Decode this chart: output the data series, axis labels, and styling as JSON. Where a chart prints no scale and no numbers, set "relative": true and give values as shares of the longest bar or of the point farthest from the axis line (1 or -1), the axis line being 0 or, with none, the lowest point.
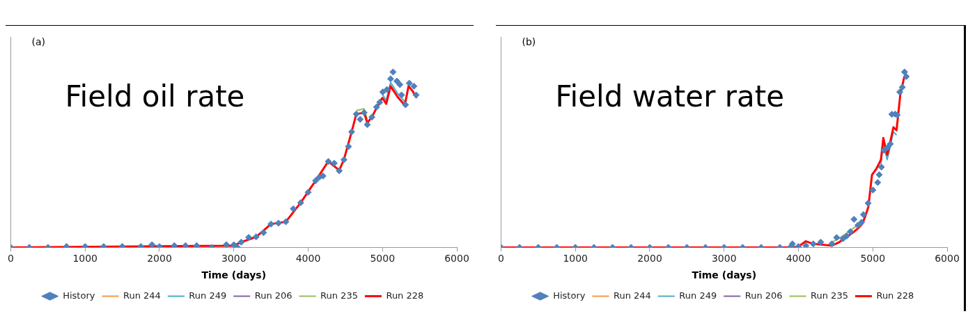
{
  "chart_data": [
    {
      "type": "line",
      "relative": true,
      "xlabel": "Time (days)",
      "annotations": [
        "(a)",
        "Field oil rate"
      ],
      "xlim": [
        0,
        6000
      ],
      "xticks": [
        0,
        1000,
        2000,
        3000,
        4000,
        5000,
        6000
      ],
      "grid": false,
      "legend": "bottom",
      "line_style": "solid",
      "series": [
        {
          "name": "History",
          "type": "scatter",
          "marker": "diamond",
          "color": "#4f81bd",
          "x": [
            0,
            250,
            500,
            750,
            1000,
            1250,
            1500,
            1750,
            1900,
            2000,
            2200,
            2350,
            2500,
            2700,
            2900,
            3000,
            3050,
            3100,
            3200,
            3300,
            3400,
            3500,
            3600,
            3700,
            3800,
            3900,
            4000,
            4100,
            4150,
            4200,
            4271,
            4350,
            4418,
            4481,
            4543,
            4585,
            4648,
            4700,
            4753,
            4795,
            4858,
            4920,
            4962,
            5004,
            5060,
            5109,
            5142,
            5193,
            5234,
            5256,
            5310,
            5360,
            5423,
            5452
          ],
          "values": [
            0,
            0,
            0,
            0.005,
            0.005,
            0.005,
            0.005,
            0.005,
            0.015,
            0.005,
            0.01,
            0.01,
            0.01,
            0,
            0.015,
            0.015,
            0,
            0.03,
            0.057,
            0.06,
            0.084,
            0.133,
            0.138,
            0.146,
            0.22,
            0.255,
            0.314,
            0.38,
            0.4,
            0.407,
            0.49,
            0.48,
            0.437,
            0.5,
            0.575,
            0.659,
            0.76,
            0.73,
            0.768,
            0.7,
            0.743,
            0.8,
            0.827,
            0.886,
            0.9,
            0.961,
            1,
            0.948,
            0.928,
            0.869,
            0.813,
            0.936,
            0.919,
            0.869
          ]
        },
        {
          "name": "Run 244",
          "color": "#f79646"
        },
        {
          "name": "Run 249",
          "color": "#4bacc6",
          "x": [
            5000,
            5050,
            5109,
            5200,
            5300
          ],
          "values": [
            0.872,
            0.838,
            0.94,
            0.88,
            0.83
          ]
        },
        {
          "name": "Run 206",
          "color": "#8064a2"
        },
        {
          "name": "Run 235",
          "color": "#9bbb59",
          "x": [
            4648,
            4753,
            4795
          ],
          "values": [
            0.78,
            0.79,
            0.73
          ]
        },
        {
          "name": "Run 228",
          "color": "#ff0000",
          "x": [
            0,
            3000,
            3100,
            3300,
            3500,
            3700,
            3900,
            4100,
            4271,
            4418,
            4481,
            4585,
            4648,
            4753,
            4795,
            4858,
            4962,
            5000,
            5050,
            5109,
            5200,
            5300,
            5350,
            5400,
            5460
          ],
          "values": [
            0,
            0.01,
            0.03,
            0.06,
            0.133,
            0.146,
            0.255,
            0.38,
            0.49,
            0.44,
            0.5,
            0.659,
            0.76,
            0.768,
            0.71,
            0.743,
            0.83,
            0.852,
            0.818,
            0.919,
            0.86,
            0.81,
            0.919,
            0.894,
            0.852
          ]
        }
      ]
    },
    {
      "type": "line",
      "relative": true,
      "xlabel": "Time (days)",
      "annotations": [
        "(b)",
        "Field water rate"
      ],
      "xlim": [
        0,
        6000
      ],
      "xticks": [
        0,
        1000,
        2000,
        3000,
        4000,
        5000,
        6000
      ],
      "grid": false,
      "legend": "bottom",
      "line_style": "solid",
      "series": [
        {
          "name": "History",
          "type": "scatter",
          "marker": "diamond",
          "color": "#4f81bd",
          "x": [
            0,
            250,
            500,
            750,
            1000,
            1250,
            1500,
            1750,
            2000,
            2250,
            2500,
            2750,
            3000,
            3250,
            3500,
            3750,
            3900,
            3919,
            4000,
            4100,
            4200,
            4300,
            4450,
            4514,
            4600,
            4650,
            4700,
            4747,
            4800,
            4850,
            4875,
            4938,
            5002,
            5066,
            5087,
            5117,
            5151,
            5200,
            5236,
            5257,
            5300,
            5329,
            5363,
            5397,
            5427,
            5450
          ],
          "values": [
            0,
            0,
            0,
            0,
            0,
            0,
            0,
            0,
            0,
            0,
            0,
            0,
            0,
            0,
            0,
            0,
            0.005,
            0.02,
            0.005,
            0.01,
            0.02,
            0.03,
            0.02,
            0.056,
            0.05,
            0.065,
            0.09,
            0.16,
            0.126,
            0.143,
            0.187,
            0.252,
            0.327,
            0.37,
            0.414,
            0.458,
            0.554,
            0.57,
            0.59,
            0.759,
            0.76,
            0.755,
            0.886,
            0.913,
            1,
            0.974
          ]
        },
        {
          "name": "Run 244",
          "color": "#f79646"
        },
        {
          "name": "Run 249",
          "color": "#4bacc6",
          "x": [
            5110,
            5142,
            5193,
            5220,
            5278,
            5320
          ],
          "values": [
            0.475,
            0.595,
            0.5,
            0.545,
            0.66,
            0.64
          ]
        },
        {
          "name": "Run 206",
          "color": "#8064a2"
        },
        {
          "name": "Run 235",
          "color": "#9bbb59",
          "x": [
            4450,
            4550,
            4650,
            4750,
            4800
          ],
          "values": [
            0.03,
            0.052,
            0.082,
            0.112,
            0.13
          ]
        },
        {
          "name": "Run 228",
          "color": "#ff0000",
          "x": [
            0,
            3900,
            4000,
            4100,
            4200,
            4450,
            4550,
            4650,
            4750,
            4800,
            4860,
            4900,
            4940,
            4990,
            5050,
            5110,
            5142,
            5193,
            5220,
            5278,
            5320,
            5370,
            5420,
            5450
          ],
          "values": [
            0,
            0,
            0.005,
            0.035,
            0.02,
            0.01,
            0.03,
            0.06,
            0.09,
            0.108,
            0.135,
            0.178,
            0.23,
            0.414,
            0.449,
            0.5,
            0.624,
            0.528,
            0.572,
            0.685,
            0.668,
            0.869,
            0.965,
            0.974
          ]
        }
      ]
    }
  ]
}
